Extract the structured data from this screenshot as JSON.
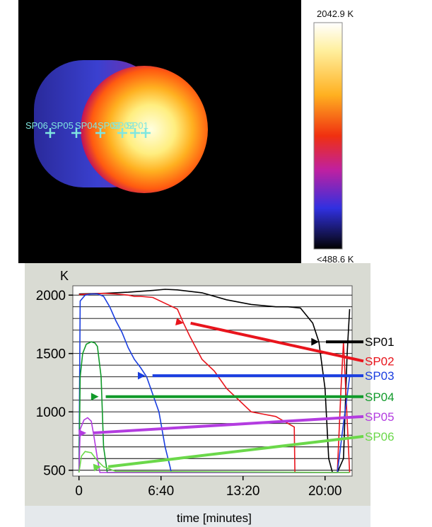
{
  "thermal_image": {
    "colorbar_max_label": "2042.9 K",
    "colorbar_min_label": "<488.6 K",
    "spot_labels": [
      "SP06",
      "SP05",
      "SP04",
      "SP03",
      "SP02",
      "SP01"
    ]
  },
  "chart_data": {
    "type": "line",
    "ylabel": "K",
    "xlabel": "time [minutes]",
    "x_ticks": [
      {
        "minutes": 0,
        "label": "0"
      },
      {
        "minutes": 6.667,
        "label": "6:40"
      },
      {
        "minutes": 13.333,
        "label": "13:20"
      },
      {
        "minutes": 20,
        "label": "20:00"
      }
    ],
    "y_ticks": [
      500,
      1000,
      1500,
      2000
    ],
    "xlim": [
      -0.5,
      22.2
    ],
    "ylim": [
      450,
      2080
    ],
    "grid": "horizontal",
    "series": [
      {
        "name": "SP01",
        "color": "#000000",
        "x": [
          0,
          2,
          4,
          6,
          7,
          8,
          10,
          12,
          14,
          16,
          17,
          18,
          19,
          19.5,
          20,
          20.3,
          20.6,
          21,
          21.5,
          21.8,
          22
        ],
        "y": [
          2010,
          2015,
          2025,
          2040,
          2050,
          2045,
          2020,
          1960,
          1920,
          1900,
          1900,
          1890,
          1760,
          1600,
          1200,
          600,
          480,
          480,
          600,
          1500,
          1880
        ]
      },
      {
        "name": "SP02",
        "color": "#e8141c",
        "x": [
          0,
          1,
          2,
          3,
          4,
          4.5,
          5,
          6,
          7,
          8,
          8.5,
          9,
          10,
          11,
          12,
          13,
          14,
          15,
          16,
          16.5,
          17,
          17.5,
          17.55,
          18,
          21,
          21.3,
          21.5,
          22
        ],
        "y": [
          2005,
          2010,
          2015,
          2010,
          2000,
          1990,
          1990,
          1980,
          1930,
          1880,
          1760,
          1650,
          1450,
          1350,
          1200,
          1100,
          1000,
          980,
          960,
          930,
          900,
          870,
          480,
          480,
          480,
          1200,
          1600,
          480
        ]
      },
      {
        "name": "SP03",
        "color": "#1a3ee0",
        "x": [
          0,
          0.1,
          0.5,
          1,
          1.5,
          2,
          2.5,
          3,
          3.5,
          4,
          4.5,
          5,
          5.5,
          6,
          6.5,
          7,
          7.4,
          7.5,
          21,
          21.5,
          22
        ],
        "y": [
          480,
          1950,
          2000,
          2010,
          2010,
          1990,
          1900,
          1780,
          1680,
          1550,
          1450,
          1380,
          1300,
          1150,
          1000,
          700,
          530,
          480,
          480,
          900,
          1300
        ]
      },
      {
        "name": "SP04",
        "color": "#119a2a",
        "x": [
          0,
          0.1,
          0.3,
          0.6,
          1,
          1.3,
          1.5,
          1.8,
          2,
          2.3,
          22
        ],
        "y": [
          480,
          1300,
          1500,
          1580,
          1600,
          1590,
          1560,
          1300,
          700,
          480,
          480
        ]
      },
      {
        "name": "SP05",
        "color": "#b33ce0",
        "x": [
          0,
          0.1,
          0.4,
          0.7,
          1,
          1.2,
          1.5,
          1.7,
          22
        ],
        "y": [
          480,
          850,
          930,
          950,
          920,
          800,
          600,
          480,
          480
        ]
      },
      {
        "name": "SP06",
        "color": "#6bd84a",
        "x": [
          0,
          0.2,
          0.5,
          1,
          1.5,
          2,
          2.5,
          3,
          22
        ],
        "y": [
          480,
          620,
          660,
          650,
          580,
          530,
          510,
          490,
          480
        ]
      }
    ]
  }
}
